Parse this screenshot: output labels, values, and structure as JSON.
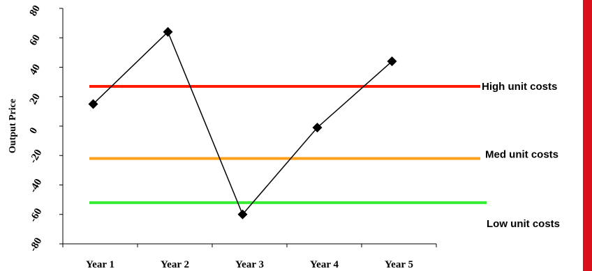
{
  "chart_data": {
    "type": "line",
    "categories": [
      "Year 1",
      "Year 2",
      "Year 3",
      "Year 4",
      "Year 5"
    ],
    "series": [
      {
        "values": [
          15,
          64,
          -60,
          -1,
          44
        ],
        "color": "#000000",
        "marker": "diamond"
      }
    ],
    "ylabel": "Output Price",
    "xlabel": "",
    "ylim": [
      -80,
      80
    ],
    "yticks": [
      "80",
      "60",
      "40",
      "20",
      "0",
      "-20",
      "-40",
      "-60",
      "-80"
    ],
    "reference_lines": [
      {
        "label": "High unit costs",
        "value": 27,
        "color": "#ff1a00"
      },
      {
        "label": "Med unit costs",
        "value": -22,
        "color": "#ffa01a"
      },
      {
        "label": "Low unit costs",
        "value": -52,
        "color": "#33ee33"
      }
    ],
    "grid": false,
    "accent_bar_color": "#d9101b"
  }
}
